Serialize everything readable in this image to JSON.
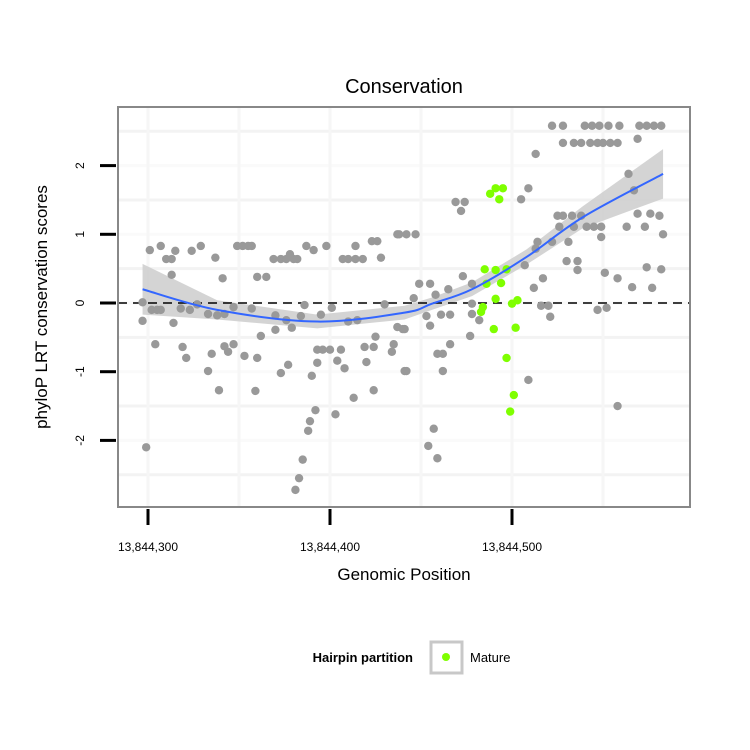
{
  "chart_data": {
    "type": "scatter",
    "title": "Conservation",
    "xlabel": "Genomic Position",
    "ylabel": "phyloP LRT conservation scores",
    "xlim": [
      13844284,
      13844598
    ],
    "ylim": [
      -2.95,
      2.85
    ],
    "x_ticks": [
      13844300,
      13844400,
      13844500
    ],
    "x_tick_labels": [
      "13,844,300",
      "13,844,400",
      "13,844,500"
    ],
    "y_ticks": [
      -2,
      -1,
      0,
      1,
      2
    ],
    "y_tick_labels": [
      "-2",
      "-1",
      "0",
      "1",
      "2"
    ],
    "reference_line": {
      "y": 0,
      "style": "dashed"
    },
    "legend": {
      "title": "Hairpin partition",
      "placement": "bottom",
      "entries": [
        {
          "label": "Mature",
          "color": "#7fff00"
        }
      ]
    },
    "colors": {
      "other": "#999999",
      "mature": "#7fff00",
      "smooth": "#3366ff",
      "ribbon": "#cccccc"
    },
    "series": [
      {
        "name": "Other",
        "points": [
          [
            13844301,
            0.77
          ],
          [
            13844307,
            0.83
          ],
          [
            13844310,
            0.64
          ],
          [
            13844313,
            0.64
          ],
          [
            13844315,
            0.76
          ],
          [
            13844324,
            0.76
          ],
          [
            13844329,
            0.83
          ],
          [
            13844337,
            0.66
          ],
          [
            13844349,
            0.83
          ],
          [
            13844352,
            0.83
          ],
          [
            13844355,
            0.83
          ],
          [
            13844357,
            0.83
          ],
          [
            13844369,
            0.64
          ],
          [
            13844373,
            0.64
          ],
          [
            13844376,
            0.64
          ],
          [
            13844380,
            0.64
          ],
          [
            13844382,
            0.64
          ],
          [
            13844378,
            0.71
          ],
          [
            13844387,
            0.83
          ],
          [
            13844391,
            0.77
          ],
          [
            13844398,
            0.83
          ],
          [
            13844407,
            0.64
          ],
          [
            13844410,
            0.64
          ],
          [
            13844414,
            0.64
          ],
          [
            13844418,
            0.64
          ],
          [
            13844414,
            0.83
          ],
          [
            13844423,
            0.9
          ],
          [
            13844426,
            0.9
          ],
          [
            13844428,
            0.66
          ],
          [
            13844437,
            1.0
          ],
          [
            13844341,
            0.36
          ],
          [
            13844313,
            0.41
          ],
          [
            13844360,
            0.38
          ],
          [
            13844365,
            0.38
          ],
          [
            13844297,
            0.01
          ],
          [
            13844302,
            -0.1
          ],
          [
            13844305,
            -0.1
          ],
          [
            13844307,
            -0.1
          ],
          [
            13844318,
            -0.08
          ],
          [
            13844323,
            -0.1
          ],
          [
            13844327,
            -0.02
          ],
          [
            13844333,
            -0.16
          ],
          [
            13844338,
            -0.18
          ],
          [
            13844342,
            -0.16
          ],
          [
            13844347,
            -0.06
          ],
          [
            13844357,
            -0.08
          ],
          [
            13844370,
            -0.18
          ],
          [
            13844376,
            -0.25
          ],
          [
            13844384,
            -0.19
          ],
          [
            13844386,
            -0.03
          ],
          [
            13844395,
            -0.17
          ],
          [
            13844401,
            -0.07
          ],
          [
            13844410,
            -0.27
          ],
          [
            13844415,
            -0.25
          ],
          [
            13844430,
            -0.02
          ],
          [
            13844437,
            -0.35
          ],
          [
            13844441,
            -0.38
          ],
          [
            13844297,
            -0.26
          ],
          [
            13844314,
            -0.29
          ],
          [
            13844370,
            -0.39
          ],
          [
            13844379,
            -0.36
          ],
          [
            13844362,
            -0.48
          ],
          [
            13844425,
            -0.49
          ],
          [
            13844304,
            -0.6
          ],
          [
            13844319,
            -0.64
          ],
          [
            13844321,
            -0.8
          ],
          [
            13844335,
            -0.74
          ],
          [
            13844342,
            -0.63
          ],
          [
            13844344,
            -0.71
          ],
          [
            13844347,
            -0.6
          ],
          [
            13844353,
            -0.77
          ],
          [
            13844360,
            -0.8
          ],
          [
            13844333,
            -0.99
          ],
          [
            13844339,
            -1.27
          ],
          [
            13844359,
            -1.28
          ],
          [
            13844373,
            -1.02
          ],
          [
            13844377,
            -0.9
          ],
          [
            13844390,
            -1.06
          ],
          [
            13844393,
            -0.87
          ],
          [
            13844393,
            -0.68
          ],
          [
            13844396,
            -0.68
          ],
          [
            13844400,
            -0.68
          ],
          [
            13844406,
            -0.68
          ],
          [
            13844404,
            -0.84
          ],
          [
            13844408,
            -0.95
          ],
          [
            13844403,
            -1.62
          ],
          [
            13844413,
            -1.38
          ],
          [
            13844420,
            -0.86
          ],
          [
            13844419,
            -0.64
          ],
          [
            13844424,
            -0.64
          ],
          [
            13844424,
            -1.27
          ],
          [
            13844435,
            -0.6
          ],
          [
            13844434,
            -0.71
          ],
          [
            13844441,
            -0.99
          ],
          [
            13844299,
            -2.1
          ],
          [
            13844392,
            -1.56
          ],
          [
            13844389,
            -1.72
          ],
          [
            13844388,
            -1.86
          ],
          [
            13844385,
            -2.28
          ],
          [
            13844383,
            -2.55
          ],
          [
            13844381,
            -2.72
          ],
          [
            13844438,
            1.0
          ],
          [
            13844442,
            1.0
          ],
          [
            13844447,
            1.0
          ],
          [
            13844469,
            1.47
          ],
          [
            13844474,
            1.47
          ],
          [
            13844472,
            1.34
          ],
          [
            13844509,
            1.67
          ],
          [
            13844505,
            1.51
          ],
          [
            13844513,
            2.17
          ],
          [
            13844522,
            2.58
          ],
          [
            13844528,
            2.58
          ],
          [
            13844540,
            2.58
          ],
          [
            13844544,
            2.58
          ],
          [
            13844548,
            2.58
          ],
          [
            13844553,
            2.58
          ],
          [
            13844559,
            2.58
          ],
          [
            13844570,
            2.58
          ],
          [
            13844574,
            2.58
          ],
          [
            13844578,
            2.58
          ],
          [
            13844582,
            2.58
          ],
          [
            13844528,
            2.33
          ],
          [
            13844534,
            2.33
          ],
          [
            13844538,
            2.33
          ],
          [
            13844543,
            2.33
          ],
          [
            13844547,
            2.33
          ],
          [
            13844550,
            2.33
          ],
          [
            13844554,
            2.33
          ],
          [
            13844558,
            2.33
          ],
          [
            13844569,
            2.39
          ],
          [
            13844564,
            1.88
          ],
          [
            13844567,
            1.64
          ],
          [
            13844525,
            1.27
          ],
          [
            13844528,
            1.27
          ],
          [
            13844533,
            1.27
          ],
          [
            13844538,
            1.27
          ],
          [
            13844526,
            1.11
          ],
          [
            13844534,
            1.11
          ],
          [
            13844541,
            1.11
          ],
          [
            13844545,
            1.11
          ],
          [
            13844549,
            1.11
          ],
          [
            13844549,
            0.96
          ],
          [
            13844531,
            0.89
          ],
          [
            13844522,
            0.89
          ],
          [
            13844514,
            0.89
          ],
          [
            13844513,
            0.79
          ],
          [
            13844507,
            0.55
          ],
          [
            13844530,
            0.61
          ],
          [
            13844536,
            0.61
          ],
          [
            13844536,
            0.48
          ],
          [
            13844569,
            1.3
          ],
          [
            13844576,
            1.3
          ],
          [
            13844581,
            1.27
          ],
          [
            13844563,
            1.11
          ],
          [
            13844573,
            1.11
          ],
          [
            13844583,
            1.0
          ],
          [
            13844574,
            0.52
          ],
          [
            13844582,
            0.49
          ],
          [
            13844551,
            0.44
          ],
          [
            13844558,
            0.36
          ],
          [
            13844566,
            0.23
          ],
          [
            13844577,
            0.22
          ],
          [
            13844517,
            0.36
          ],
          [
            13844512,
            0.22
          ],
          [
            13844547,
            -0.1
          ],
          [
            13844552,
            -0.07
          ],
          [
            13844516,
            -0.04
          ],
          [
            13844520,
            -0.04
          ],
          [
            13844521,
            -0.2
          ],
          [
            13844558,
            -1.5
          ],
          [
            13844509,
            -1.12
          ],
          [
            13844449,
            0.28
          ],
          [
            13844455,
            0.28
          ],
          [
            13844458,
            0.12
          ],
          [
            13844465,
            0.2
          ],
          [
            13844473,
            0.39
          ],
          [
            13844446,
            0.07
          ],
          [
            13844453,
            -0.19
          ],
          [
            13844461,
            -0.17
          ],
          [
            13844466,
            -0.17
          ],
          [
            13844455,
            -0.33
          ],
          [
            13844478,
            -0.01
          ],
          [
            13844478,
            -0.16
          ],
          [
            13844482,
            -0.25
          ],
          [
            13844478,
            0.28
          ],
          [
            13844440,
            -0.38
          ],
          [
            13844477,
            -0.48
          ],
          [
            13844466,
            -0.6
          ],
          [
            13844459,
            -0.74
          ],
          [
            13844462,
            -0.74
          ],
          [
            13844462,
            -0.99
          ],
          [
            13844442,
            -0.99
          ],
          [
            13844457,
            -1.83
          ],
          [
            13844454,
            -2.08
          ],
          [
            13844459,
            -2.26
          ]
        ]
      },
      {
        "name": "Mature",
        "points": [
          [
            13844488,
            1.59
          ],
          [
            13844491,
            1.67
          ],
          [
            13844495,
            1.67
          ],
          [
            13844493,
            1.51
          ],
          [
            13844485,
            0.49
          ],
          [
            13844491,
            0.48
          ],
          [
            13844497,
            0.49
          ],
          [
            13844486,
            0.28
          ],
          [
            13844494,
            0.29
          ],
          [
            13844491,
            0.06
          ],
          [
            13844484,
            -0.06
          ],
          [
            13844483,
            -0.13
          ],
          [
            13844500,
            -0.01
          ],
          [
            13844503,
            0.04
          ],
          [
            13844490,
            -0.38
          ],
          [
            13844502,
            -0.36
          ],
          [
            13844497,
            -0.8
          ],
          [
            13844501,
            -1.34
          ],
          [
            13844499,
            -1.58
          ]
        ]
      }
    ],
    "smooth": {
      "x": [
        13844297,
        13844338,
        13844393,
        13844441,
        13844456,
        13844478,
        13844508,
        13844539,
        13844583
      ],
      "y": [
        0.2,
        -0.1,
        -0.27,
        -0.14,
        -0.01,
        0.2,
        0.67,
        1.25,
        1.88
      ],
      "se": [
        0.37,
        0.14,
        0.1,
        0.1,
        0.09,
        0.1,
        0.11,
        0.16,
        0.36
      ]
    }
  }
}
